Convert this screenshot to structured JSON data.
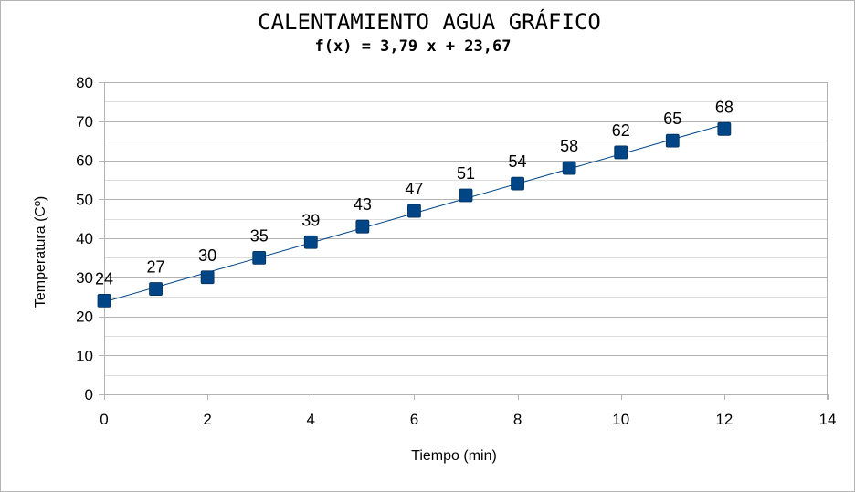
{
  "chart_data": {
    "type": "scatter",
    "title": "CALENTAMIENTO AGUA GRÁFICO",
    "subtitle": "f(x) = 3,79 x + 23,67",
    "xlabel": "Tiempo (min)",
    "ylabel": "Temperatura (Cº)",
    "xlim": [
      0,
      14
    ],
    "ylim": [
      0,
      80
    ],
    "x_ticks": [
      0,
      2,
      4,
      6,
      8,
      10,
      12,
      14
    ],
    "y_ticks": [
      0,
      10,
      20,
      30,
      40,
      50,
      60,
      70,
      80
    ],
    "grid": true,
    "legend": "none",
    "marker_color": "#004586",
    "trendline": {
      "type": "linear",
      "slope": 3.79,
      "intercept": 23.67,
      "color": "#004586"
    },
    "x": [
      0,
      1,
      2,
      3,
      4,
      5,
      6,
      7,
      8,
      9,
      10,
      11,
      12
    ],
    "y": [
      24,
      27,
      30,
      35,
      39,
      43,
      47,
      51,
      54,
      58,
      62,
      65,
      68
    ],
    "data_labels": [
      "24",
      "27",
      "30",
      "35",
      "39",
      "43",
      "47",
      "51",
      "54",
      "58",
      "62",
      "65",
      "68"
    ]
  }
}
